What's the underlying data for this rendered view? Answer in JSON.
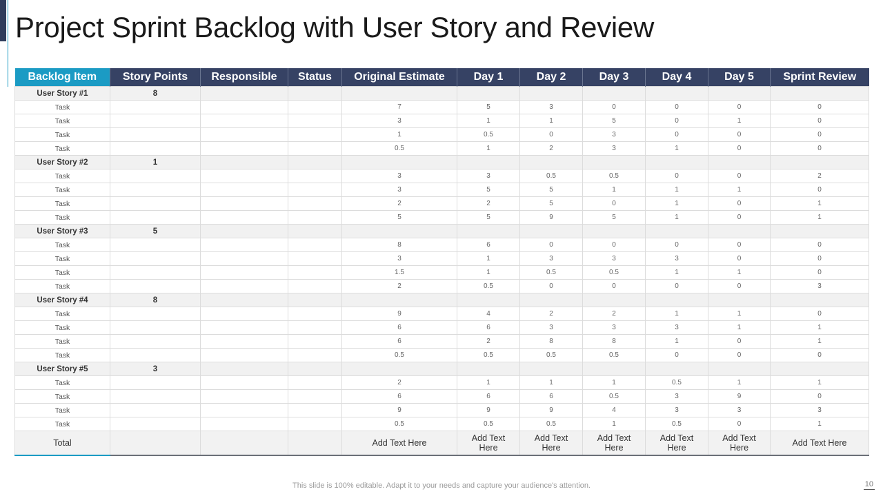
{
  "title": "Project Sprint Backlog with User Story and Review",
  "colors": {
    "header_bg": "#364264",
    "first_header_bg": "#1b9bc4",
    "accent_bar": "#2f3d5c",
    "story_row_bg": "#f1f1f1"
  },
  "table": {
    "headers": [
      "Backlog Item",
      "Story Points",
      "Responsible",
      "Status",
      "Original Estimate",
      "Day 1",
      "Day 2",
      "Day 3",
      "Day 4",
      "Day 5",
      "Sprint Review"
    ],
    "stories": [
      {
        "name": "User Story #1",
        "points": "8",
        "tasks": [
          {
            "label": "Task",
            "estimate": "7",
            "day1": "5",
            "day2": "3",
            "day3": "0",
            "day4": "0",
            "day5": "0",
            "review": "0"
          },
          {
            "label": "Task",
            "estimate": "3",
            "day1": "1",
            "day2": "1",
            "day3": "5",
            "day4": "0",
            "day5": "1",
            "review": "0"
          },
          {
            "label": "Task",
            "estimate": "1",
            "day1": "0.5",
            "day2": "0",
            "day3": "3",
            "day4": "0",
            "day5": "0",
            "review": "0"
          },
          {
            "label": "Task",
            "estimate": "0.5",
            "day1": "1",
            "day2": "2",
            "day3": "3",
            "day4": "1",
            "day5": "0",
            "review": "0"
          }
        ]
      },
      {
        "name": "User Story #2",
        "points": "1",
        "tasks": [
          {
            "label": "Task",
            "estimate": "3",
            "day1": "3",
            "day2": "0.5",
            "day3": "0.5",
            "day4": "0",
            "day5": "0",
            "review": "2"
          },
          {
            "label": "Task",
            "estimate": "3",
            "day1": "5",
            "day2": "5",
            "day3": "1",
            "day4": "1",
            "day5": "1",
            "review": "0"
          },
          {
            "label": "Task",
            "estimate": "2",
            "day1": "2",
            "day2": "5",
            "day3": "0",
            "day4": "1",
            "day5": "0",
            "review": "1"
          },
          {
            "label": "Task",
            "estimate": "5",
            "day1": "5",
            "day2": "9",
            "day3": "5",
            "day4": "1",
            "day5": "0",
            "review": "1"
          }
        ]
      },
      {
        "name": "User Story #3",
        "points": "5",
        "tasks": [
          {
            "label": "Task",
            "estimate": "8",
            "day1": "6",
            "day2": "0",
            "day3": "0",
            "day4": "0",
            "day5": "0",
            "review": "0"
          },
          {
            "label": "Task",
            "estimate": "3",
            "day1": "1",
            "day2": "3",
            "day3": "3",
            "day4": "3",
            "day5": "0",
            "review": "0"
          },
          {
            "label": "Task",
            "estimate": "1.5",
            "day1": "1",
            "day2": "0.5",
            "day3": "0.5",
            "day4": "1",
            "day5": "1",
            "review": "0"
          },
          {
            "label": "Task",
            "estimate": "2",
            "day1": "0.5",
            "day2": "0",
            "day3": "0",
            "day4": "0",
            "day5": "0",
            "review": "3"
          }
        ]
      },
      {
        "name": "User Story #4",
        "points": "8",
        "tasks": [
          {
            "label": "Task",
            "estimate": "9",
            "day1": "4",
            "day2": "2",
            "day3": "2",
            "day4": "1",
            "day5": "1",
            "review": "0"
          },
          {
            "label": "Task",
            "estimate": "6",
            "day1": "6",
            "day2": "3",
            "day3": "3",
            "day4": "3",
            "day5": "1",
            "review": "1"
          },
          {
            "label": "Task",
            "estimate": "6",
            "day1": "2",
            "day2": "8",
            "day3": "8",
            "day4": "1",
            "day5": "0",
            "review": "1"
          },
          {
            "label": "Task",
            "estimate": "0.5",
            "day1": "0.5",
            "day2": "0.5",
            "day3": "0.5",
            "day4": "0",
            "day5": "0",
            "review": "0"
          }
        ]
      },
      {
        "name": "User Story #5",
        "points": "3",
        "tasks": [
          {
            "label": "Task",
            "estimate": "2",
            "day1": "1",
            "day2": "1",
            "day3": "1",
            "day4": "0.5",
            "day5": "1",
            "review": "1"
          },
          {
            "label": "Task",
            "estimate": "6",
            "day1": "6",
            "day2": "6",
            "day3": "0.5",
            "day4": "3",
            "day5": "9",
            "review": "0"
          },
          {
            "label": "Task",
            "estimate": "9",
            "day1": "9",
            "day2": "9",
            "day3": "4",
            "day4": "3",
            "day5": "3",
            "review": "3"
          },
          {
            "label": "Task",
            "estimate": "0.5",
            "day1": "0.5",
            "day2": "0.5",
            "day3": "1",
            "day4": "0.5",
            "day5": "0",
            "review": "1"
          }
        ]
      }
    ],
    "total": {
      "label": "Total",
      "estimate": "Add Text Here",
      "day1": "Add Text Here",
      "day2": "Add Text Here",
      "day3": "Add Text Here",
      "day4": "Add Text Here",
      "day5": "Add Text Here",
      "review": "Add Text Here"
    }
  },
  "footer": {
    "note": "This slide is 100% editable. Adapt it to your needs and capture your audience's attention.",
    "page_number": "10"
  }
}
